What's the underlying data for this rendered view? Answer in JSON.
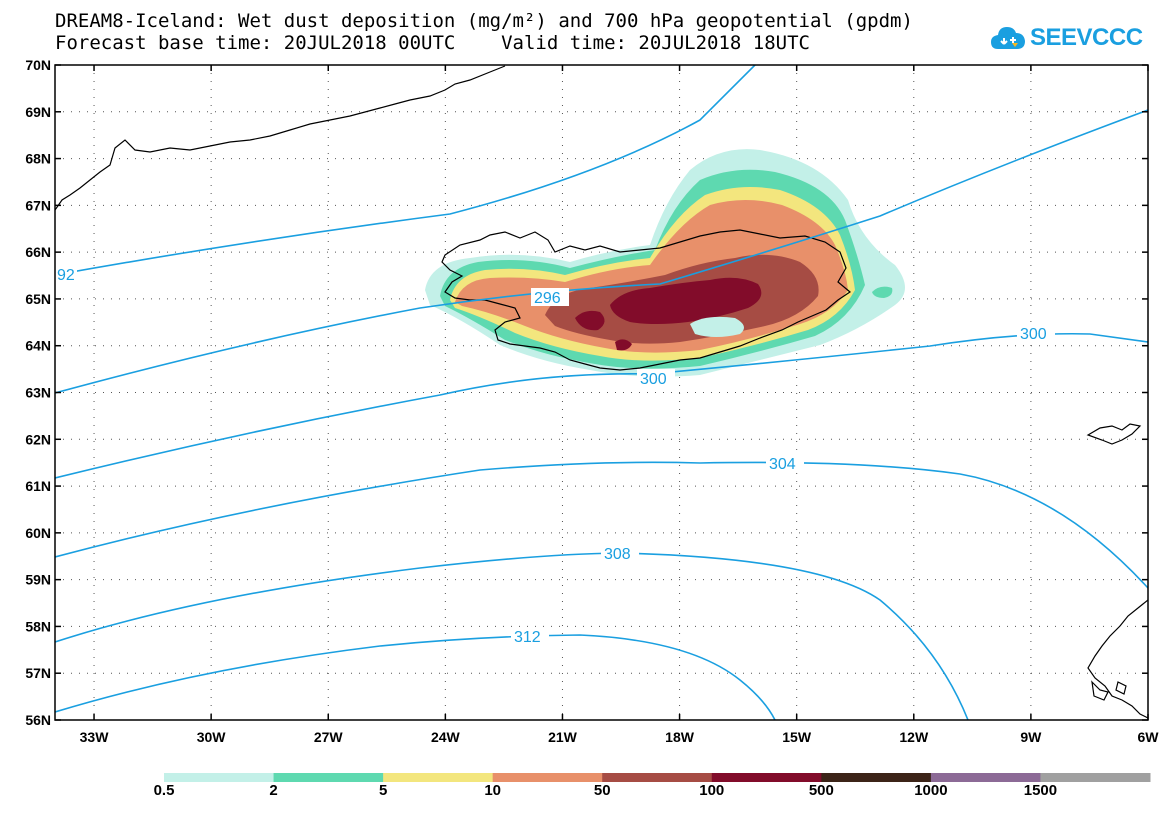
{
  "header": {
    "title_line1": "DREAM8-Iceland: Wet dust deposition (mg/m²) and 700 hPa geopotential (gpdm)",
    "title_line2": "Forecast base time: 20JUL2018 00UTC    Valid time: 20JUL2018 18UTC"
  },
  "logo": {
    "text": "SEEVCCC",
    "icon": "cloud-icon",
    "color": "#1a9fe0"
  },
  "map": {
    "projection": "lat-lon",
    "lon_range": [
      -34,
      -6
    ],
    "lat_range": [
      56,
      70
    ],
    "lat_labels": [
      "70N",
      "69N",
      "68N",
      "67N",
      "66N",
      "65N",
      "64N",
      "63N",
      "62N",
      "61N",
      "60N",
      "59N",
      "58N",
      "57N",
      "56N"
    ],
    "lon_labels": [
      "33W",
      "30W",
      "27W",
      "24W",
      "21W",
      "18W",
      "15W",
      "12W",
      "9W",
      "6W"
    ],
    "contour_color": "#1a9fe0",
    "contour_labels": [
      "92",
      "296",
      "300",
      "300",
      "304",
      "308",
      "312"
    ]
  },
  "colorbar": {
    "labels": [
      "0.5",
      "2",
      "5",
      "10",
      "50",
      "100",
      "500",
      "1000",
      "1500"
    ],
    "colors": [
      "#c3f0e8",
      "#5ed9b0",
      "#f3e67e",
      "#e8906a",
      "#a64c44",
      "#820c2a",
      "#3c2418",
      "#8c6a96",
      "#a0a0a0"
    ]
  }
}
